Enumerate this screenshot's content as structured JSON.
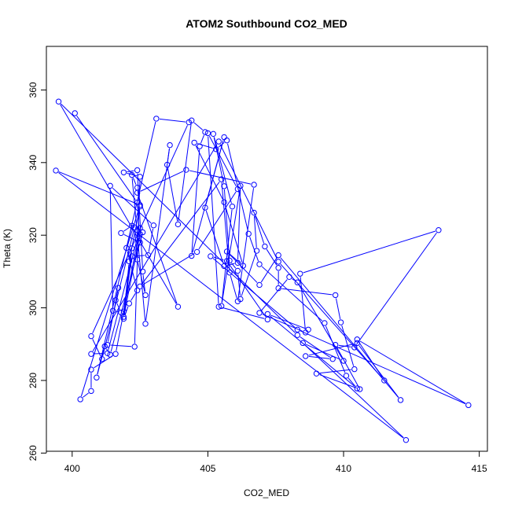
{
  "chart_data": {
    "type": "line",
    "title": "ATOM2 Southbound CO2_MED",
    "xlabel": "CO2_MED",
    "ylabel": "Theta (K)",
    "xlim": [
      399.05,
      415.3
    ],
    "ylim": [
      260.5,
      372.0
    ],
    "xticks": [
      400,
      405,
      410,
      415
    ],
    "yticks": [
      260,
      280,
      300,
      320,
      340,
      360
    ],
    "markers": "open-circle",
    "grid": false,
    "legend": "none",
    "color": "#0000ff",
    "series": [
      {
        "points": [
          [
            400.1,
            353.6
          ],
          [
            402.4,
            329.0
          ],
          [
            402.5,
            318.0
          ],
          [
            401.8,
            320.6
          ],
          [
            402.2,
            322.6
          ],
          [
            402.0,
            316.5
          ],
          [
            402.4,
            304.8
          ],
          [
            402.1,
            301.2
          ],
          [
            401.9,
            297.0
          ],
          [
            402.2,
            316.4
          ],
          [
            401.9,
            299.0
          ],
          [
            402.2,
            314.2
          ],
          [
            402.8,
            314.5
          ],
          [
            403.0,
            322.7
          ],
          [
            401.4,
            333.6
          ],
          [
            401.5,
            299.2
          ],
          [
            401.8,
            298.7
          ],
          [
            401.6,
            302.1
          ],
          [
            401.7,
            305.5
          ],
          [
            401.3,
            289.8
          ],
          [
            402.3,
            289.3
          ],
          [
            402.5,
            336.1
          ],
          [
            401.9,
            337.3
          ],
          [
            402.4,
            337.9
          ],
          [
            402.6,
            310.0
          ],
          [
            402.7,
            303.5
          ],
          [
            402.4,
            313.3
          ],
          [
            402.3,
            322.2
          ],
          [
            401.1,
            285.9
          ],
          [
            400.7,
            292.2
          ],
          [
            404.3,
            351.1
          ],
          [
            403.1,
            352.1
          ],
          [
            400.9,
            280.8
          ],
          [
            401.2,
            289.4
          ],
          [
            401.4,
            287.1
          ],
          [
            402.6,
            320.8
          ],
          [
            402.5,
            320.3
          ],
          [
            401.9,
            297.5
          ],
          [
            402.1,
            312.8
          ],
          [
            402.5,
            327.9
          ],
          [
            402.4,
            333.1
          ],
          [
            402.2,
            336.6
          ],
          [
            402.7,
            295.6
          ],
          [
            403.6,
            344.8
          ],
          [
            403.5,
            339.4
          ],
          [
            403.9,
            323.0
          ],
          [
            404.4,
            351.6
          ],
          [
            404.9,
            348.4
          ],
          [
            404.7,
            344.5
          ],
          [
            404.4,
            314.3
          ],
          [
            405.6,
            347.0
          ],
          [
            404.9,
            327.6
          ],
          [
            405.6,
            311.5
          ],
          [
            406.1,
            312.4
          ],
          [
            406.2,
            333.6
          ],
          [
            405.5,
            300.5
          ],
          [
            405.9,
            327.9
          ],
          [
            405.2,
            347.9
          ],
          [
            405.6,
            333.5
          ],
          [
            405.8,
            313.0
          ],
          [
            406.1,
            310.2
          ],
          [
            406.2,
            302.4
          ],
          [
            406.8,
            315.7
          ],
          [
            406.7,
            326.2
          ],
          [
            407.1,
            316.9
          ],
          [
            407.6,
            311.0
          ],
          [
            407.6,
            305.4
          ],
          [
            409.7,
            303.5
          ],
          [
            409.9,
            296.0
          ],
          [
            410.4,
            283.1
          ],
          [
            409.0,
            281.9
          ],
          [
            410.6,
            277.6
          ],
          [
            409.7,
            289.8
          ],
          [
            410.4,
            289.1
          ],
          [
            413.5,
            321.4
          ],
          [
            408.4,
            309.4
          ],
          [
            408.6,
            293.2
          ],
          [
            406.9,
            298.6
          ],
          [
            408.0,
            308.5
          ],
          [
            408.3,
            307.0
          ],
          [
            410.0,
            285.4
          ],
          [
            408.5,
            290.3
          ],
          [
            412.3,
            263.6
          ],
          [
            399.4,
            337.8
          ],
          [
            402.5,
            328.3
          ],
          [
            400.3,
            274.8
          ],
          [
            400.7,
            277.1
          ],
          [
            400.7,
            283.0
          ],
          [
            401.6,
            287.3
          ],
          [
            402.5,
            322.0
          ],
          [
            401.3,
            287.5
          ],
          [
            400.7,
            287.3
          ],
          [
            405.4,
            345.8
          ],
          [
            407.6,
            312.7
          ],
          [
            411.5,
            280.0
          ],
          [
            410.5,
            291.3
          ],
          [
            414.6,
            273.2
          ],
          [
            408.3,
            294.0
          ],
          [
            405.1,
            314.2
          ],
          [
            405.7,
            312.9
          ],
          [
            407.2,
            296.8
          ],
          [
            405.4,
            300.3
          ],
          [
            405.0,
            348.1
          ],
          [
            406.1,
            332.7
          ],
          [
            404.6,
            315.4
          ],
          [
            402.5,
            305.9
          ],
          [
            405.5,
            335.4
          ],
          [
            405.8,
            309.7
          ],
          [
            406.1,
            301.8
          ],
          [
            406.7,
            333.9
          ],
          [
            404.2,
            338.0
          ],
          [
            402.4,
            331.7
          ],
          [
            403.9,
            300.3
          ],
          [
            399.5,
            356.8
          ],
          [
            408.3,
            292.5
          ],
          [
            409.6,
            285.9
          ],
          [
            408.6,
            286.7
          ],
          [
            410.5,
            290.3
          ],
          [
            412.1,
            274.6
          ],
          [
            407.6,
            314.5
          ],
          [
            406.9,
            306.3
          ],
          [
            405.7,
            315.5
          ],
          [
            406.3,
            311.6
          ],
          [
            405.6,
            329.1
          ],
          [
            404.5,
            345.5
          ],
          [
            405.3,
            343.7
          ],
          [
            405.7,
            346.1
          ],
          [
            406.5,
            320.4
          ],
          [
            406.9,
            312.0
          ],
          [
            409.3,
            295.8
          ],
          [
            410.1,
            281.3
          ],
          [
            410.5,
            277.8
          ],
          [
            407.2,
            298.3
          ],
          [
            408.7,
            294.0
          ]
        ]
      }
    ]
  }
}
